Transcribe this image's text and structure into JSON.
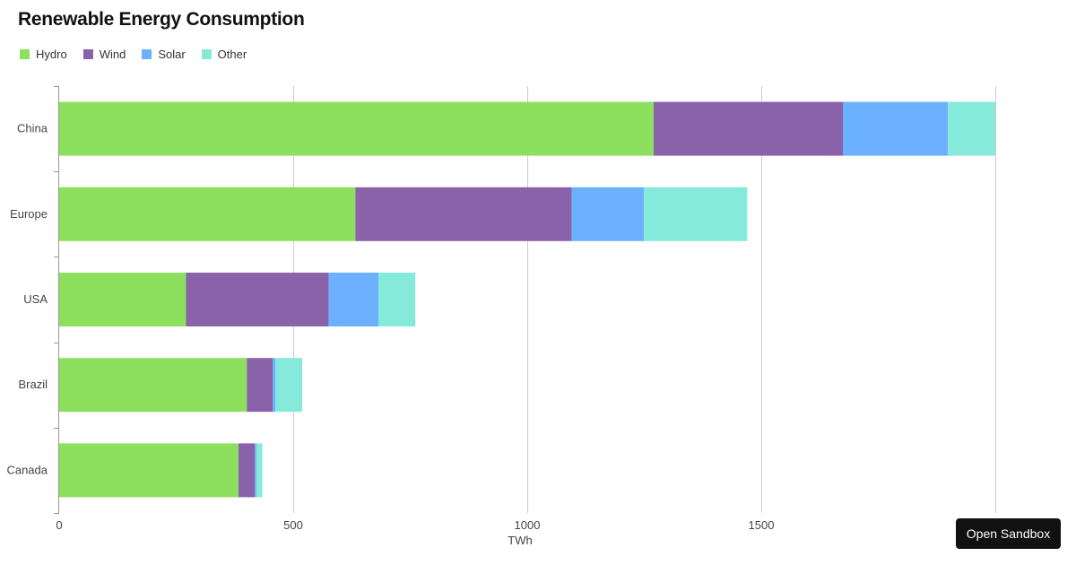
{
  "chart_data": {
    "type": "bar",
    "orientation": "horizontal",
    "stacked": true,
    "title": "Renewable Energy Consumption",
    "xlabel": "TWh",
    "ylabel": "",
    "xlim": [
      0,
      2000
    ],
    "xticks": [
      "0",
      "500",
      "1000",
      "1500"
    ],
    "xtick_values": [
      0,
      500,
      1000,
      1500
    ],
    "categories": [
      "China",
      "Europe",
      "USA",
      "Brazil",
      "Canada"
    ],
    "series": [
      {
        "name": "Hydro",
        "color": "#8ddf5e",
        "values": [
          1270,
          633,
          271,
          401,
          383
        ]
      },
      {
        "name": "Wind",
        "color": "#8a62aa",
        "values": [
          405,
          462,
          305,
          55,
          35
        ]
      },
      {
        "name": "Solar",
        "color": "#6cb1ff",
        "values": [
          224,
          154,
          106,
          6,
          4
        ]
      },
      {
        "name": "Other",
        "color": "#85ead9",
        "values": [
          101,
          221,
          79,
          57,
          12
        ]
      }
    ],
    "legend_position": "top-left",
    "grid": true
  },
  "ui": {
    "open_sandbox_label": "Open Sandbox"
  }
}
